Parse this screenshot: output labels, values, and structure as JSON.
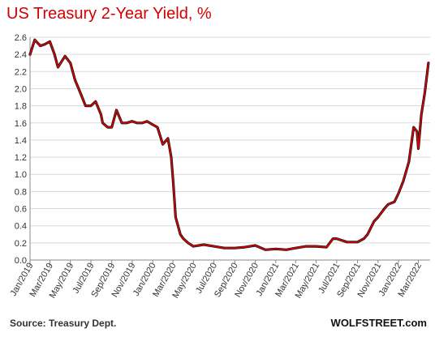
{
  "colors": {
    "line": "#e00000",
    "line_shadow": "#1a1a1a",
    "title": "#d40000",
    "grid": "#d9d9d9",
    "axis": "#888888"
  },
  "chart_data": {
    "type": "line",
    "title": "US Treasury 2-Year Yield, %",
    "xlabel": "",
    "ylabel": "",
    "ylim": [
      0,
      2.6
    ],
    "y_ticks": [
      "0.0",
      "0.2",
      "0.4",
      "0.6",
      "0.8",
      "1.0",
      "1.2",
      "1.4",
      "1.6",
      "1.8",
      "2.0",
      "2.2",
      "2.4",
      "2.6"
    ],
    "x_ticks": [
      "Jan/2019",
      "Mar/2019",
      "May/2019",
      "Jul/2019",
      "Sep/2019",
      "Nov/2019",
      "Jan/2020",
      "Mar/2020",
      "May/2020",
      "Jul/2020",
      "Sep/2020",
      "Nov/2020",
      "Jan/2021",
      "Mar/2021",
      "May/2021",
      "Jul/2021",
      "Sep/2021",
      "Nov/2021",
      "Jan/2022",
      "Mar/2022"
    ],
    "grid": "horizontal",
    "legend": "none",
    "series": [
      {
        "x": [
          "2019-01-01",
          "2019-01-15",
          "2019-02-01",
          "2019-02-15",
          "2019-03-01",
          "2019-03-15",
          "2019-03-25",
          "2019-04-15",
          "2019-05-01",
          "2019-05-15",
          "2019-05-31",
          "2019-06-15",
          "2019-07-01",
          "2019-07-15",
          "2019-07-31",
          "2019-08-05",
          "2019-08-20",
          "2019-09-01",
          "2019-09-15",
          "2019-10-01",
          "2019-10-15",
          "2019-11-01",
          "2019-11-15",
          "2019-12-01",
          "2019-12-15",
          "2020-01-01",
          "2020-01-15",
          "2020-01-31",
          "2020-02-15",
          "2020-02-25",
          "2020-03-02",
          "2020-03-09",
          "2020-03-16",
          "2020-03-23",
          "2020-04-01",
          "2020-04-15",
          "2020-05-01",
          "2020-06-01",
          "2020-07-01",
          "2020-08-01",
          "2020-09-01",
          "2020-10-01",
          "2020-11-01",
          "2020-12-01",
          "2021-01-01",
          "2021-02-01",
          "2021-03-01",
          "2021-04-01",
          "2021-05-01",
          "2021-06-01",
          "2021-06-20",
          "2021-07-01",
          "2021-08-01",
          "2021-09-01",
          "2021-09-20",
          "2021-10-01",
          "2021-10-20",
          "2021-11-01",
          "2021-11-20",
          "2021-12-01",
          "2021-12-20",
          "2022-01-01",
          "2022-01-15",
          "2022-02-01",
          "2022-02-15",
          "2022-02-25",
          "2022-03-01",
          "2022-03-10",
          "2022-03-20",
          "2022-03-31"
        ],
        "values": [
          2.4,
          2.57,
          2.5,
          2.52,
          2.55,
          2.4,
          2.25,
          2.38,
          2.3,
          2.1,
          1.95,
          1.8,
          1.8,
          1.85,
          1.7,
          1.6,
          1.55,
          1.55,
          1.75,
          1.6,
          1.6,
          1.62,
          1.6,
          1.6,
          1.62,
          1.58,
          1.55,
          1.35,
          1.42,
          1.2,
          0.9,
          0.5,
          0.4,
          0.3,
          0.25,
          0.2,
          0.16,
          0.18,
          0.16,
          0.14,
          0.14,
          0.15,
          0.17,
          0.12,
          0.13,
          0.12,
          0.14,
          0.16,
          0.16,
          0.15,
          0.25,
          0.25,
          0.21,
          0.21,
          0.25,
          0.3,
          0.45,
          0.5,
          0.6,
          0.65,
          0.68,
          0.78,
          0.92,
          1.15,
          1.55,
          1.5,
          1.3,
          1.7,
          1.95,
          2.3
        ]
      }
    ]
  },
  "footer": {
    "source": "Source: Treasury Dept.",
    "brand": "WOLFSTREET.com"
  }
}
